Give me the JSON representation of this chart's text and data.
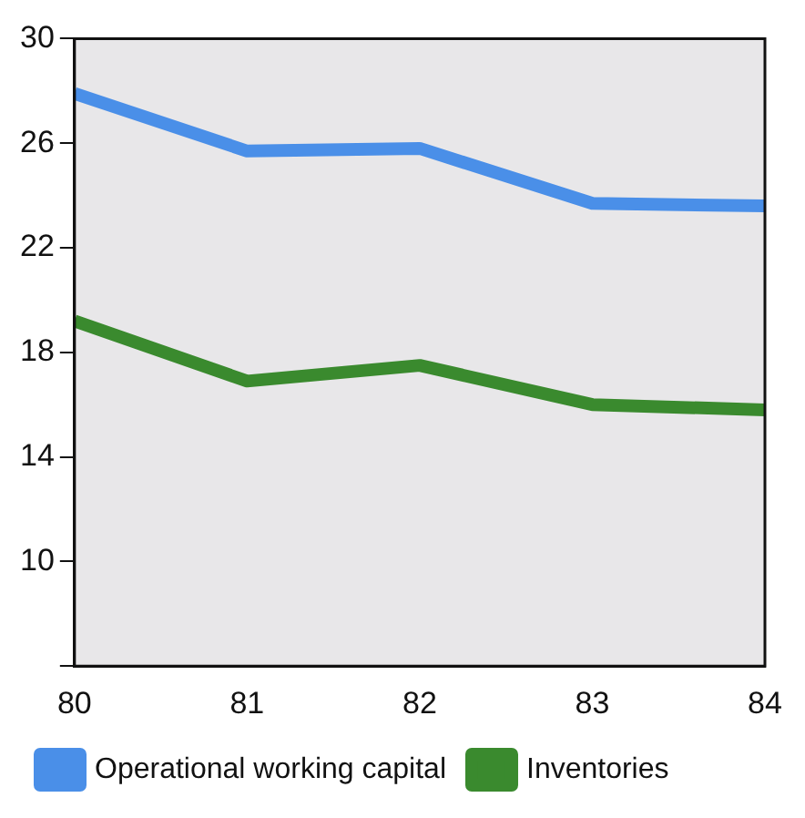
{
  "chart_data": {
    "type": "line",
    "x": [
      80,
      81,
      82,
      83,
      84
    ],
    "xlim": [
      80,
      84
    ],
    "xticks": [
      80,
      81,
      82,
      83,
      84
    ],
    "ylim": [
      6,
      30
    ],
    "yticks": [
      {
        "value": 6,
        "label": null
      },
      10,
      14,
      18,
      22,
      26,
      30
    ],
    "grid": false,
    "legend": "bottom",
    "marker": "none",
    "line_style": "solid",
    "series": [
      {
        "name": "Operational working capital",
        "color": "#4a8fe8",
        "values": [
          27.9,
          25.7,
          25.8,
          23.7,
          23.6
        ]
      },
      {
        "name": "Inventories",
        "color": "#3a8a2e",
        "values": [
          19.2,
          16.9,
          17.5,
          16.0,
          15.8
        ]
      }
    ]
  }
}
